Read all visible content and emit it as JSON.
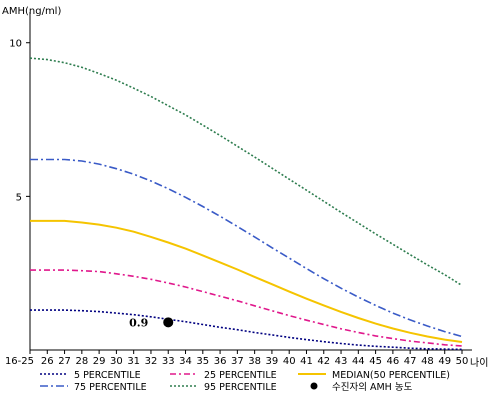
{
  "chart_data": {
    "type": "line",
    "xlabel": "나이",
    "ylabel": "AMH(ng/ml)",
    "x_tick_labels": [
      "16-25",
      "26",
      "27",
      "28",
      "29",
      "30",
      "31",
      "32",
      "33",
      "34",
      "35",
      "36",
      "37",
      "38",
      "39",
      "40",
      "41",
      "42",
      "43",
      "44",
      "45",
      "46",
      "47",
      "48",
      "49",
      "50"
    ],
    "x": [
      25,
      26,
      27,
      28,
      29,
      30,
      31,
      32,
      33,
      34,
      35,
      36,
      37,
      38,
      39,
      40,
      41,
      42,
      43,
      44,
      45,
      46,
      47,
      48,
      49,
      50
    ],
    "ylim": [
      0,
      11
    ],
    "y_ticks": [
      5,
      10
    ],
    "grid": false,
    "legend_position": "bottom",
    "series": [
      {
        "name": "5 PERCENTILE",
        "color": "#000080",
        "dash": "2,2",
        "values": [
          1.3,
          1.3,
          1.3,
          1.28,
          1.25,
          1.2,
          1.15,
          1.08,
          1.0,
          0.92,
          0.83,
          0.74,
          0.66,
          0.57,
          0.49,
          0.41,
          0.34,
          0.27,
          0.21,
          0.16,
          0.12,
          0.09,
          0.06,
          0.04,
          0.03,
          0.02
        ]
      },
      {
        "name": "25 PERCENTILE",
        "color": "#e0188c",
        "dash": "6,3,2,3",
        "values": [
          2.6,
          2.6,
          2.6,
          2.58,
          2.55,
          2.48,
          2.4,
          2.3,
          2.18,
          2.05,
          1.9,
          1.75,
          1.6,
          1.44,
          1.28,
          1.12,
          0.97,
          0.83,
          0.69,
          0.57,
          0.46,
          0.37,
          0.29,
          0.23,
          0.17,
          0.13
        ]
      },
      {
        "name": "MEDIAN(50 PERCENTILE)",
        "color": "#f5c400",
        "dash": "",
        "values": [
          4.2,
          4.2,
          4.2,
          4.15,
          4.08,
          3.98,
          3.85,
          3.68,
          3.5,
          3.3,
          3.08,
          2.85,
          2.62,
          2.38,
          2.14,
          1.9,
          1.67,
          1.45,
          1.24,
          1.04,
          0.86,
          0.7,
          0.56,
          0.44,
          0.34,
          0.26
        ]
      },
      {
        "name": "75 PERCENTILE",
        "color": "#3a5bc7",
        "dash": "8,3,2,3",
        "values": [
          6.2,
          6.2,
          6.2,
          6.15,
          6.05,
          5.9,
          5.72,
          5.5,
          5.25,
          4.97,
          4.67,
          4.35,
          4.02,
          3.68,
          3.33,
          2.99,
          2.65,
          2.32,
          2.01,
          1.72,
          1.45,
          1.2,
          0.98,
          0.78,
          0.6,
          0.44
        ]
      },
      {
        "name": "95 PERCENTILE",
        "color": "#2e7d4f",
        "dash": "2,2",
        "values": [
          9.5,
          9.45,
          9.35,
          9.2,
          9.0,
          8.78,
          8.52,
          8.25,
          7.95,
          7.65,
          7.32,
          6.98,
          6.63,
          6.28,
          5.92,
          5.56,
          5.2,
          4.84,
          4.48,
          4.13,
          3.78,
          3.44,
          3.1,
          2.77,
          2.45,
          2.1
        ]
      }
    ],
    "marker": {
      "name": "수진자의 AMH 농도",
      "x": 33,
      "y": 0.9,
      "label": "0.9",
      "color": "#000000"
    }
  }
}
